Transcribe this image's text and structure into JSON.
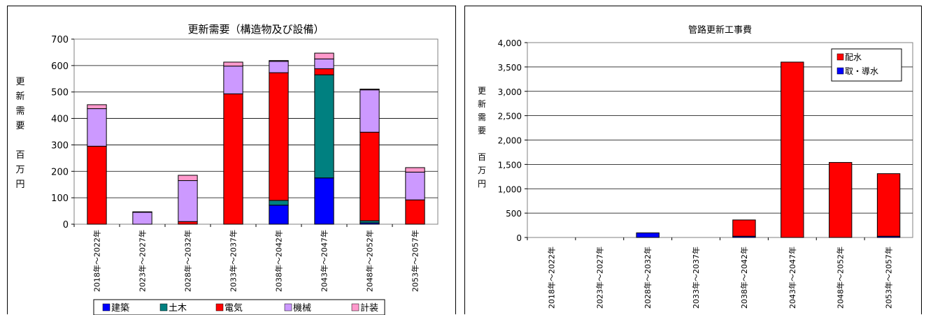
{
  "chart_data": [
    {
      "type": "bar",
      "stacked": true,
      "title": "更新需要（構造物及び設備）",
      "ylabel_chars": [
        "更",
        "新",
        "需",
        "要",
        "",
        "百",
        "万",
        "円"
      ],
      "ylim": [
        0,
        700
      ],
      "yticks": [
        0,
        100,
        200,
        300,
        400,
        500,
        600,
        700
      ],
      "ytick_labels": [
        "0",
        "100",
        "200",
        "300",
        "400",
        "500",
        "600",
        "700"
      ],
      "grid": true,
      "legend_position": "bottom",
      "categories": [
        "2018年～2022年",
        "2023年～2027年",
        "2028年～2032年",
        "2033年～2037年",
        "2038年～2042年",
        "2043年～2047年",
        "2048年～2052年",
        "2053年～2057年"
      ],
      "series": [
        {
          "name": "建築",
          "color": "#0000ff",
          "values": [
            0,
            0,
            0,
            0,
            72,
            175,
            5,
            0
          ]
        },
        {
          "name": "土木",
          "color": "#008080",
          "values": [
            0,
            0,
            0,
            0,
            18,
            390,
            8,
            0
          ]
        },
        {
          "name": "電気",
          "color": "#ff0000",
          "values": [
            295,
            0,
            10,
            493,
            483,
            23,
            335,
            92
          ]
        },
        {
          "name": "機械",
          "color": "#cc99ff",
          "values": [
            142,
            45,
            155,
            105,
            43,
            37,
            160,
            105
          ]
        },
        {
          "name": "計装",
          "color": "#ff99cc",
          "values": [
            15,
            2,
            20,
            15,
            3,
            22,
            3,
            17
          ]
        }
      ]
    },
    {
      "type": "bar",
      "stacked": true,
      "title": "管路更新工事費",
      "ylabel_chars": [
        "更",
        "新",
        "需",
        "要",
        "",
        "百",
        "万",
        "円"
      ],
      "ylim": [
        0,
        4000
      ],
      "yticks": [
        0,
        500,
        1000,
        1500,
        2000,
        2500,
        3000,
        3500,
        4000
      ],
      "ytick_labels": [
        "0",
        "500",
        "1,000",
        "1,500",
        "2,000",
        "2,500",
        "3,000",
        "3,500",
        "4,000"
      ],
      "grid": true,
      "legend_position": "top-right",
      "categories": [
        "2018年～2022年",
        "2023年～2027年",
        "2028年～2032年",
        "2033年～2037年",
        "2038年～2042年",
        "2043年～2047年",
        "2048年～2052年",
        "2053年～2057年"
      ],
      "series": [
        {
          "name": "取・導水",
          "color": "#0000ff",
          "values": [
            0,
            0,
            95,
            0,
            25,
            0,
            0,
            25
          ]
        },
        {
          "name": "配水",
          "color": "#ff0000",
          "values": [
            0,
            0,
            0,
            0,
            335,
            3600,
            1540,
            1285
          ]
        }
      ],
      "legend_order": [
        "配水",
        "取・導水"
      ]
    }
  ]
}
